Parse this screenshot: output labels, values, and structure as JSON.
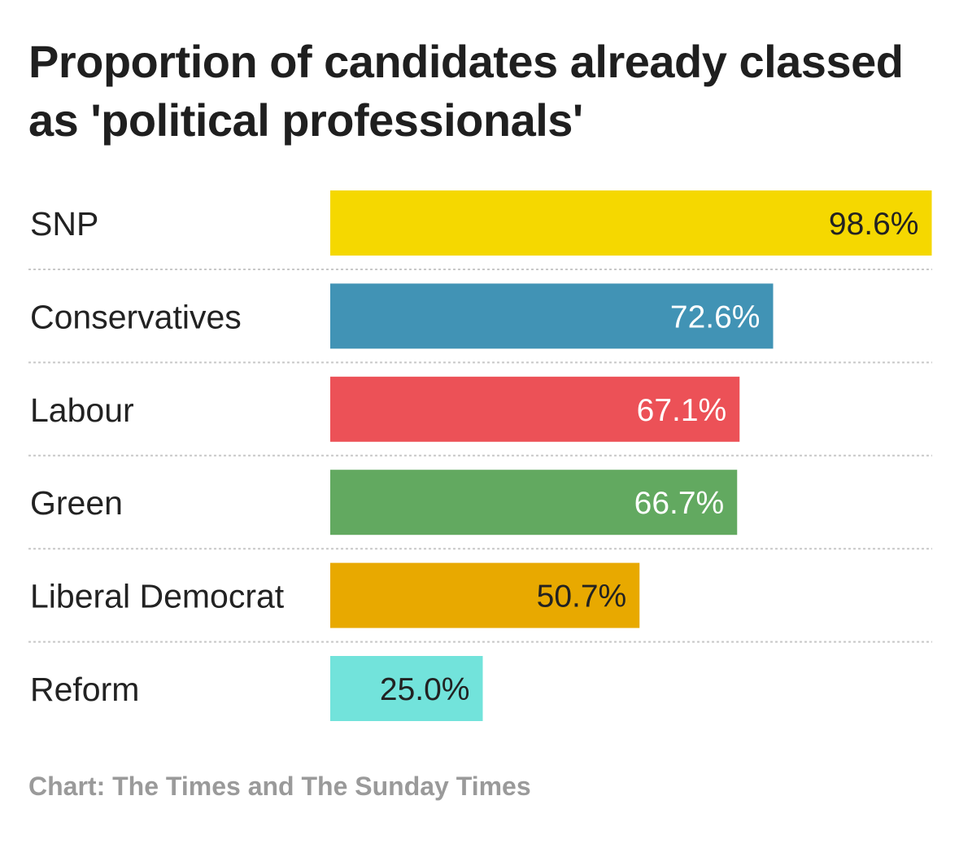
{
  "chart_data": {
    "type": "bar",
    "orientation": "horizontal",
    "title": "Proportion of candidates already classed as 'political professionals'",
    "xlabel": "",
    "ylabel": "",
    "xlim": [
      0,
      100
    ],
    "grid": false,
    "categories": [
      "SNP",
      "Conservatives",
      "Labour",
      "Green",
      "Liberal Democrat",
      "Reform"
    ],
    "values": [
      98.6,
      72.6,
      67.1,
      66.7,
      50.7,
      25.0
    ],
    "value_labels": [
      "98.6%",
      "72.6%",
      "67.1%",
      "66.7%",
      "50.7%",
      "25.0%"
    ],
    "colors": [
      "#f5d800",
      "#4193b5",
      "#ec5157",
      "#62a960",
      "#e8a900",
      "#72e3db"
    ],
    "label_colors": [
      "#222222",
      "#ffffff",
      "#ffffff",
      "#ffffff",
      "#222222",
      "#222222"
    ],
    "source": "Chart: The Times and The Sunday Times"
  }
}
